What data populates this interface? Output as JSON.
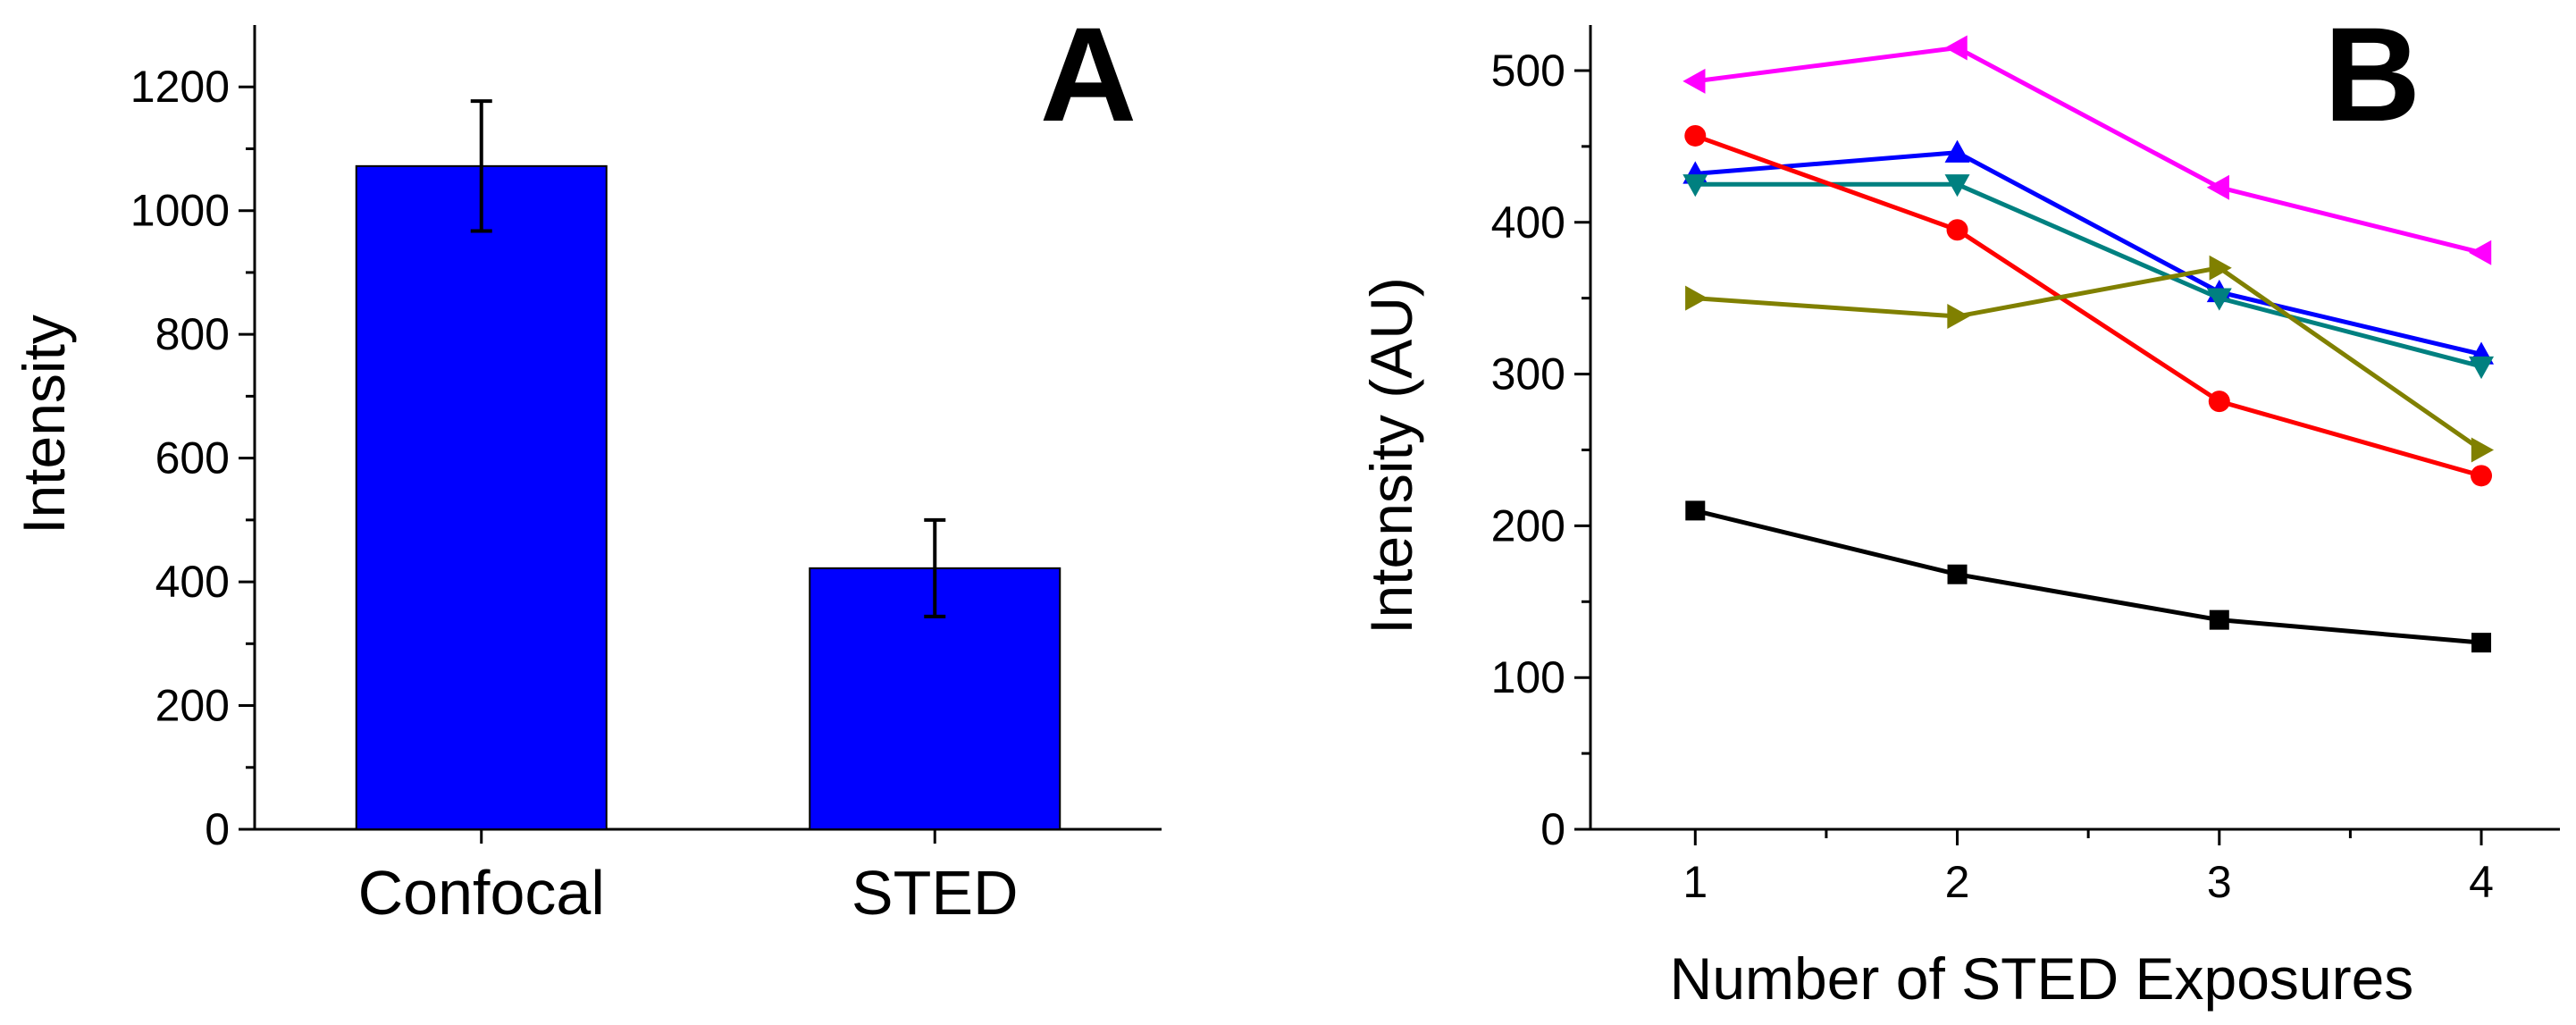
{
  "chart_data": [
    {
      "panel": "A",
      "type": "bar",
      "title": "",
      "xlabel": "",
      "ylabel": "Intensity",
      "ylim": [
        0,
        1300
      ],
      "yticks": [
        0,
        200,
        400,
        600,
        800,
        1000,
        1200
      ],
      "categories": [
        "Confocal",
        "STED"
      ],
      "values": [
        1072,
        422
      ],
      "errors": [
        105,
        78
      ],
      "bar_color": "#0000ff"
    },
    {
      "panel": "B",
      "type": "line",
      "title": "",
      "xlabel": "Number of STED Exposures",
      "ylabel": "Intensity (AU)",
      "x": [
        1,
        2,
        3,
        4
      ],
      "xlim": [
        0.6,
        4.3
      ],
      "ylim": [
        0,
        530
      ],
      "xticks": [
        1,
        2,
        3,
        4
      ],
      "yticks": [
        0,
        100,
        200,
        300,
        400,
        500
      ],
      "series": [
        {
          "name": "magenta",
          "color": "#ff00ff",
          "marker": "triangle-left",
          "values": [
            493,
            515,
            423,
            380
          ]
        },
        {
          "name": "blue",
          "color": "#0000ff",
          "marker": "triangle-up",
          "values": [
            432,
            446,
            354,
            313
          ]
        },
        {
          "name": "teal",
          "color": "#008080",
          "marker": "triangle-down",
          "values": [
            425,
            425,
            350,
            305
          ]
        },
        {
          "name": "red",
          "color": "#ff0000",
          "marker": "circle",
          "values": [
            457,
            395,
            282,
            233
          ]
        },
        {
          "name": "olive",
          "color": "#808000",
          "marker": "triangle-right",
          "values": [
            350,
            338,
            370,
            250
          ]
        },
        {
          "name": "black",
          "color": "#000000",
          "marker": "square",
          "values": [
            210,
            168,
            138,
            123
          ]
        }
      ]
    }
  ],
  "panels": {
    "a_letter": "A",
    "b_letter": "B"
  }
}
